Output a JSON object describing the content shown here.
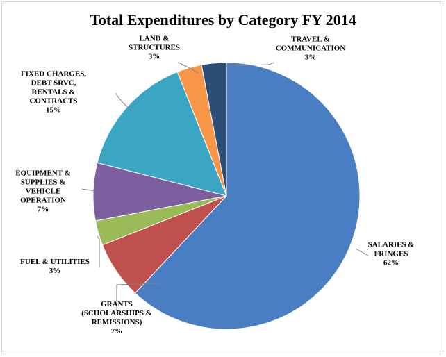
{
  "chart_data": {
    "type": "pie",
    "title": "Total Expenditures by Category FY 2014",
    "slices": [
      {
        "label": [
          "SALARIES &",
          "FRINGES"
        ],
        "percent_label": "62%",
        "value": 62,
        "color": "#4a7ec2"
      },
      {
        "label": [
          "GRANTS",
          "(SCHOLARSHIPS &",
          "REMISSIONS)"
        ],
        "percent_label": "7%",
        "value": 7,
        "color": "#c0504d"
      },
      {
        "label": [
          "FUEL & UTILITIES"
        ],
        "percent_label": "3%",
        "value": 3,
        "color": "#9bbb59"
      },
      {
        "label": [
          "EQUIPMENT &",
          "SUPPLIES &",
          "VEHICLE",
          "OPERATION"
        ],
        "percent_label": "7%",
        "value": 7,
        "color": "#7d5fa0"
      },
      {
        "label": [
          "FIXED CHARGES,",
          "DEBT SRVC,",
          "RENTALS &",
          "CONTRACTS"
        ],
        "percent_label": "15%",
        "value": 15,
        "color": "#3aa6c4"
      },
      {
        "label": [
          "LAND &",
          "STRUCTURES"
        ],
        "percent_label": "3%",
        "value": 3,
        "color": "#f79646"
      },
      {
        "label": [
          "TRAVEL &",
          "COMMUNICATION"
        ],
        "percent_label": "3%",
        "value": 3,
        "color": "#2c4d75"
      }
    ],
    "legend": "none",
    "label_style": "outside with leader lines"
  }
}
